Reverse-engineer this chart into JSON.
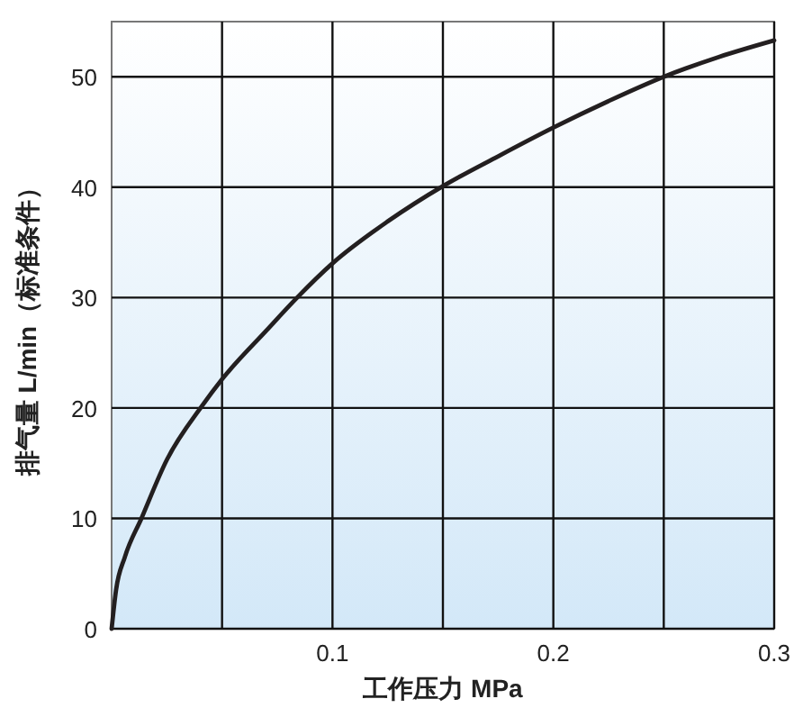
{
  "chart_data": {
    "type": "line",
    "xlabel": "工作压力 MPa",
    "ylabel": "排气量 L/min（标准条件）",
    "x": [
      0,
      0.002,
      0.006,
      0.0135,
      0.025,
      0.041,
      0.05,
      0.07,
      0.084,
      0.1,
      0.125,
      0.15,
      0.175,
      0.2,
      0.225,
      0.25,
      0.275,
      0.3
    ],
    "series": [
      {
        "color": "#231f20",
        "values": [
          0,
          3.5,
          6.5,
          10,
          15.3,
          20.2,
          22.6,
          27,
          30,
          33.1,
          36.9,
          40.1,
          42.8,
          45.4,
          47.8,
          50,
          51.8,
          53.3
        ]
      }
    ],
    "xlim": [
      0,
      0.3
    ],
    "ylim": [
      0,
      55
    ],
    "xticks": [
      {
        "value": 0.05,
        "label": null
      },
      0.1,
      {
        "value": 0.15,
        "label": null
      },
      0.2,
      {
        "value": 0.25,
        "label": null
      },
      0.3
    ],
    "yticks": [
      0,
      10,
      20,
      30,
      40,
      50
    ],
    "grid": true,
    "marker": "none",
    "line_style": "solid"
  }
}
